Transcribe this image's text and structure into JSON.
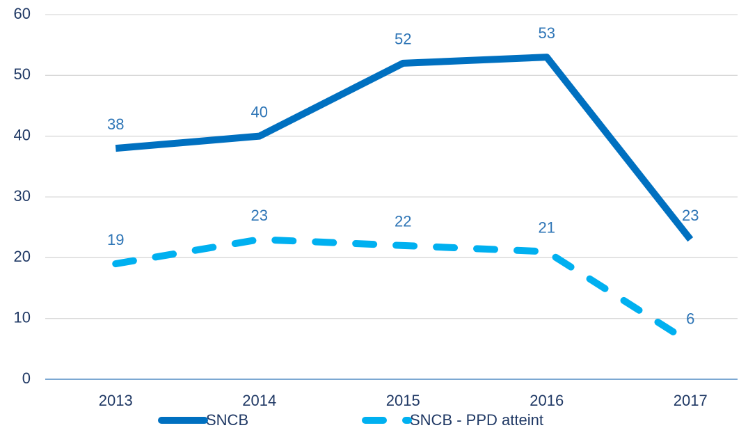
{
  "chart_data": {
    "type": "line",
    "categories": [
      "2013",
      "2014",
      "2015",
      "2016",
      "2017"
    ],
    "series": [
      {
        "name": "SNCB",
        "color": "#0070c0",
        "dashed": false,
        "values": [
          38,
          40,
          52,
          53,
          23
        ]
      },
      {
        "name": "SNCB - PPD atteint",
        "color": "#00b0f0",
        "dashed": true,
        "values": [
          19,
          23,
          22,
          21,
          6
        ]
      }
    ],
    "ylim": [
      0,
      60
    ],
    "yticks": [
      0,
      10,
      20,
      30,
      40,
      50,
      60
    ],
    "grid": true,
    "legend": "bottom"
  }
}
